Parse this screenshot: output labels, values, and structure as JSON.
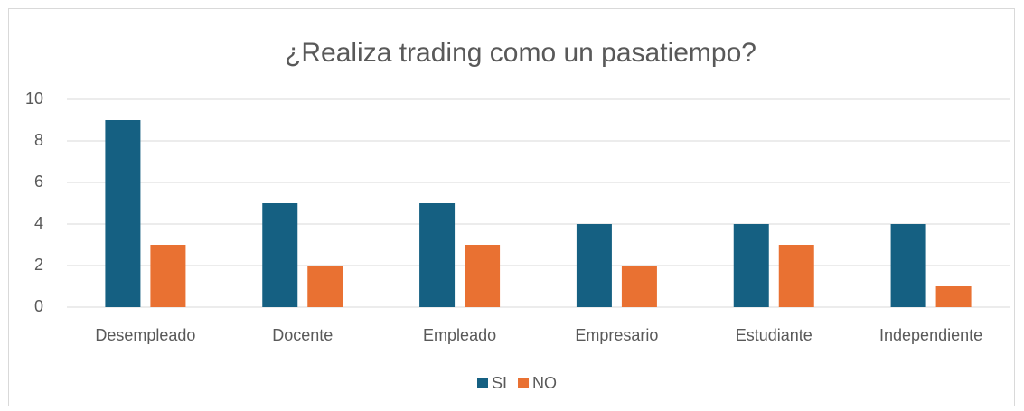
{
  "chart_data": {
    "type": "bar",
    "title": "¿Realiza trading como un pasatiempo?",
    "categories": [
      "Desempleado",
      "Docente",
      "Empleado",
      "Empresario",
      "Estudiante",
      "Independiente"
    ],
    "series": [
      {
        "name": "SI",
        "color": "#156082",
        "values": [
          9,
          5,
          5,
          4,
          4,
          4
        ]
      },
      {
        "name": "NO",
        "color": "#e97132",
        "values": [
          3,
          2,
          3,
          2,
          3,
          1
        ]
      }
    ],
    "ylim": [
      0,
      10
    ],
    "yticks": [
      0,
      2,
      4,
      6,
      8,
      10
    ],
    "grid": true,
    "legend": "bottom"
  }
}
